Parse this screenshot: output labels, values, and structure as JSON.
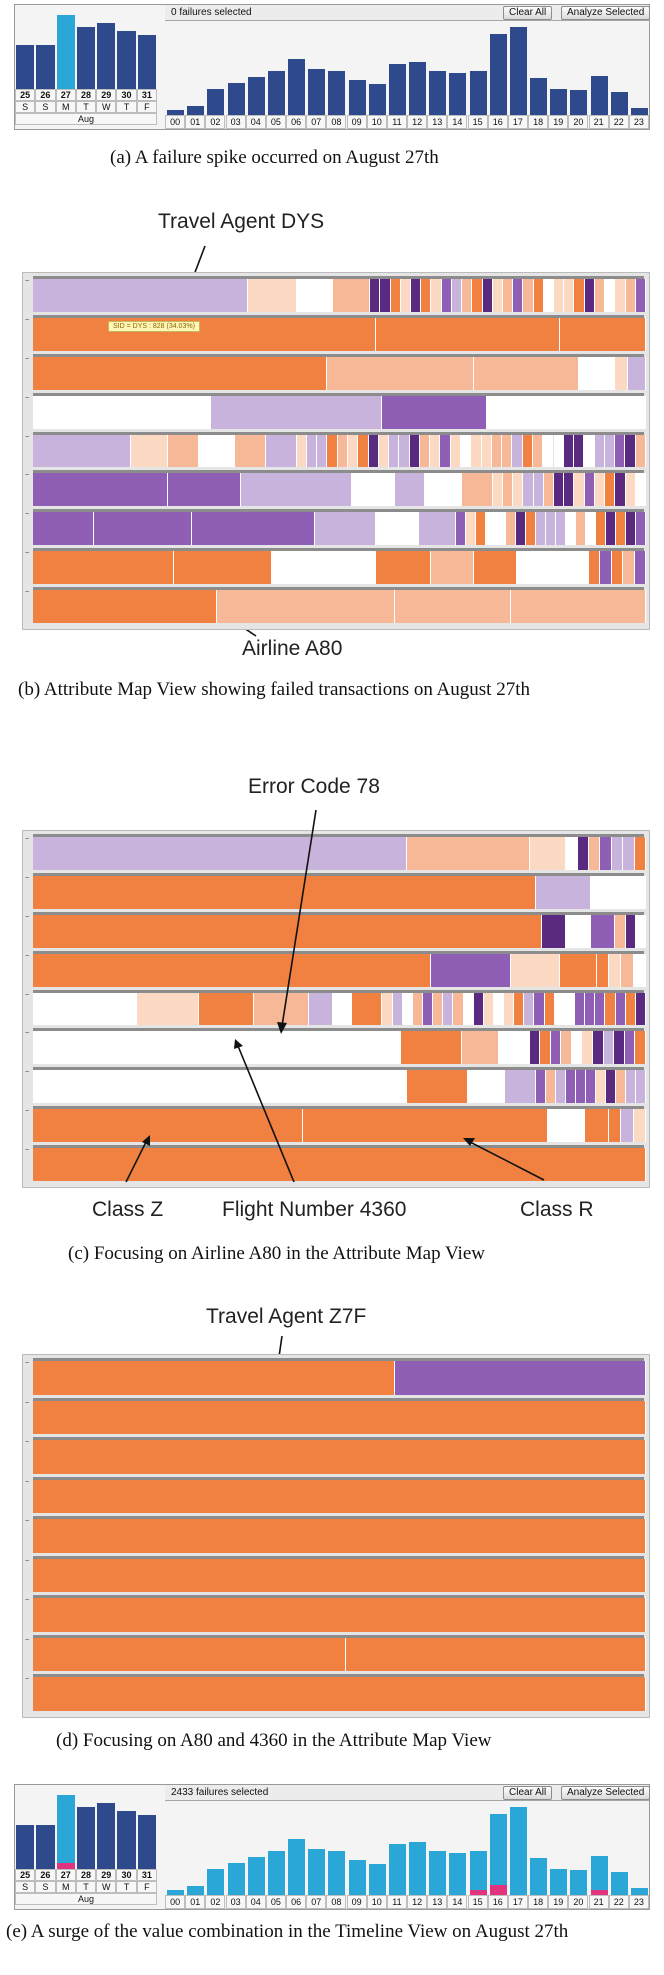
{
  "colors": {
    "orange": "#f08140",
    "light_orange": "#f6b896",
    "pale_orange": "#fbd9c3",
    "purple": "#8f5fb5",
    "light_purple": "#c8b3dd",
    "dark_purple": "#5a2a80",
    "white": "#ffffff",
    "bar_dark": "#2f4a8c",
    "bar_selected": "#2aa7d6",
    "bar_pink": "#e2337f"
  },
  "panel_a": {
    "header_text": "0 failures selected",
    "clear_label": "Clear All",
    "analyze_label": "Analyze Selected",
    "day_numbers": [
      "25",
      "26",
      "27",
      "28",
      "29",
      "30",
      "31"
    ],
    "day_letters": [
      "S",
      "S",
      "M",
      "T",
      "W",
      "T",
      "F"
    ],
    "month_label": "Aug",
    "day_values": [
      0.55,
      0.55,
      0.92,
      0.78,
      0.82,
      0.72,
      0.68
    ],
    "hour_labels": [
      "00",
      "01",
      "02",
      "03",
      "04",
      "05",
      "06",
      "07",
      "08",
      "09",
      "10",
      "11",
      "12",
      "13",
      "14",
      "15",
      "16",
      "17",
      "18",
      "19",
      "20",
      "21",
      "22",
      "23"
    ],
    "hour_values": [
      0.06,
      0.1,
      0.3,
      0.36,
      0.43,
      0.5,
      0.64,
      0.52,
      0.5,
      0.4,
      0.35,
      0.58,
      0.6,
      0.5,
      0.48,
      0.5,
      0.92,
      1.0,
      0.42,
      0.3,
      0.28,
      0.44,
      0.26,
      0.08
    ],
    "caption": "(a)  A failure spike occurred on August 27th"
  },
  "panel_b": {
    "annotation_top": "Travel Agent DYS",
    "annotation_bottom": "Airline A80",
    "tooltip": "SID = DYS : 828 (34.03%)",
    "caption": "(b)  Attribute Map View showing failed transactions on August 27th"
  },
  "panel_c": {
    "annotation_top": "Error Code 78",
    "annotation_left": "Class Z",
    "annotation_mid": "Flight Number 4360",
    "annotation_right": "Class R",
    "caption": "(c)  Focusing on Airline A80 in the Attribute Map View"
  },
  "panel_d": {
    "annotation_top": "Travel Agent Z7F",
    "caption": "(d)  Focusing on A80 and 4360 in the Attribute Map View"
  },
  "panel_e": {
    "header_text": "2433 failures selected",
    "clear_label": "Clear All",
    "analyze_label": "Analyze Selected",
    "month_label": "Aug",
    "caption": "(e)  A surge of the value combination in the Timeline View on August 27th"
  }
}
